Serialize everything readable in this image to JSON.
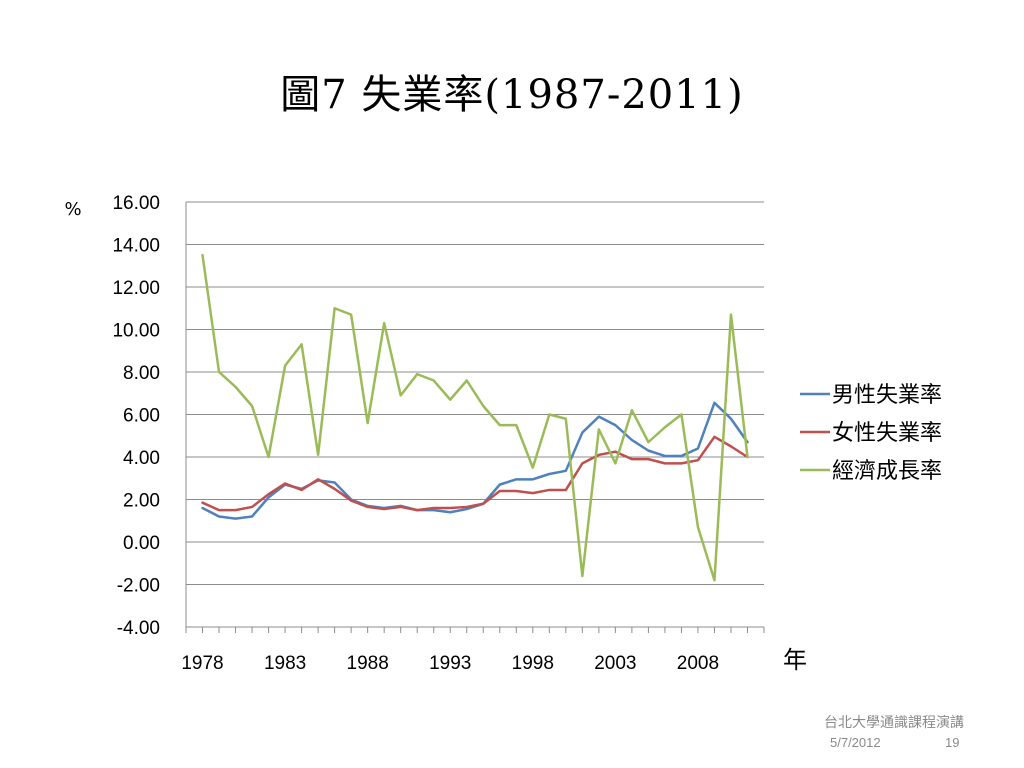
{
  "slide": {
    "title": "圖7 失業率(1987-2011)",
    "footer_org": "台北大學通識課程演講",
    "footer_date": "5/7/2012",
    "page_number": "19"
  },
  "chart_data": {
    "type": "line",
    "ylabel": "%",
    "xlabel": "年",
    "ylim": [
      -4,
      16
    ],
    "yticks": [
      "16.00",
      "14.00",
      "12.00",
      "10.00",
      "8.00",
      "6.00",
      "4.00",
      "2.00",
      "0.00",
      "-2.00",
      "-4.00"
    ],
    "xticks": [
      "1978",
      "1983",
      "1988",
      "1993",
      "1998",
      "2003",
      "2008"
    ],
    "xlim": [
      1977,
      2012
    ],
    "grid": true,
    "legend_position": "right",
    "x": [
      1978,
      1979,
      1980,
      1981,
      1982,
      1983,
      1984,
      1985,
      1986,
      1987,
      1988,
      1989,
      1990,
      1991,
      1992,
      1993,
      1994,
      1995,
      1996,
      1997,
      1998,
      1999,
      2000,
      2001,
      2002,
      2003,
      2004,
      2005,
      2006,
      2007,
      2008,
      2009,
      2010,
      2011
    ],
    "series": [
      {
        "name": "男性失業率",
        "color": "#4f81bd",
        "values": [
          1.6,
          1.2,
          1.1,
          1.2,
          2.1,
          2.7,
          2.5,
          2.9,
          2.8,
          2.0,
          1.7,
          1.6,
          1.7,
          1.5,
          1.5,
          1.4,
          1.55,
          1.8,
          2.7,
          2.95,
          2.95,
          3.2,
          3.35,
          5.15,
          5.9,
          5.5,
          4.8,
          4.3,
          4.05,
          4.05,
          4.4,
          6.55,
          5.8,
          4.7
        ]
      },
      {
        "name": "女性失業率",
        "color": "#c0504d",
        "values": [
          1.85,
          1.5,
          1.5,
          1.65,
          2.25,
          2.75,
          2.45,
          2.95,
          2.5,
          1.95,
          1.65,
          1.55,
          1.65,
          1.5,
          1.6,
          1.6,
          1.65,
          1.8,
          2.4,
          2.4,
          2.3,
          2.45,
          2.45,
          3.7,
          4.1,
          4.25,
          3.9,
          3.9,
          3.7,
          3.7,
          3.85,
          4.95,
          4.5,
          4.0
        ]
      },
      {
        "name": "經濟成長率",
        "color": "#9bbb59",
        "values": [
          13.5,
          8.0,
          7.3,
          6.4,
          4.0,
          8.3,
          9.3,
          4.1,
          11.0,
          10.7,
          5.6,
          10.3,
          6.9,
          7.9,
          7.6,
          6.7,
          7.6,
          6.4,
          5.5,
          5.5,
          3.5,
          6.0,
          5.8,
          -1.6,
          5.3,
          3.7,
          6.2,
          4.7,
          5.4,
          6.0,
          0.7,
          -1.8,
          10.7,
          4.0
        ]
      }
    ]
  }
}
